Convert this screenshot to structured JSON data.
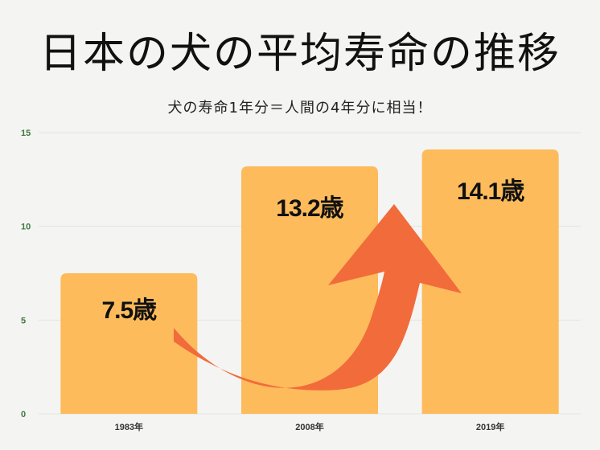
{
  "title": "日本の犬の平均寿命の推移",
  "subtitle": "犬の寿命1年分＝人間の4年分に相当！",
  "colors": {
    "bar": "#fdbb5c",
    "arrow": "#f26b3a",
    "grid": "#dfe9df",
    "tick": "#3f7a3f"
  },
  "chart_data": {
    "type": "bar",
    "title": "日本の犬の平均寿命の推移",
    "subtitle": "犬の寿命1年分＝人間の4年分に相当！",
    "categories": [
      "1983年",
      "2008年",
      "2019年"
    ],
    "values": [
      7.5,
      13.2,
      14.1
    ],
    "data_labels": [
      "7.5歳",
      "13.2歳",
      "14.1歳"
    ],
    "yticks": [
      "0",
      "5",
      "10",
      "15"
    ],
    "ylim": [
      0,
      15
    ],
    "grid": true,
    "annotation": "arrow-curving-upward"
  }
}
